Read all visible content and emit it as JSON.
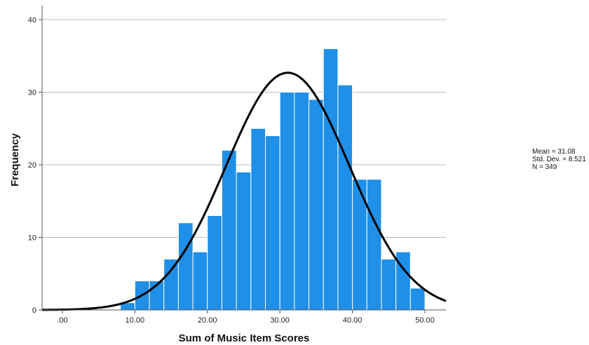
{
  "chart_data": {
    "type": "bar",
    "title": "",
    "xlabel": "Sum of Music Item Scores",
    "ylabel": "Frequency",
    "xlim": [
      -2.8,
      52.9
    ],
    "ylim": [
      0,
      40
    ],
    "x_ticks": [
      {
        "value": 0,
        "label": ".00"
      },
      {
        "value": 10,
        "label": "10.00"
      },
      {
        "value": 20,
        "label": "20.00"
      },
      {
        "value": 30,
        "label": "30.00"
      },
      {
        "value": 40,
        "label": "40.00"
      },
      {
        "value": 50,
        "label": "50.00"
      }
    ],
    "y_ticks": [
      {
        "value": 0,
        "label": "0"
      },
      {
        "value": 10,
        "label": "10"
      },
      {
        "value": 20,
        "label": "20"
      },
      {
        "value": 30,
        "label": "30"
      },
      {
        "value": 40,
        "label": "40"
      }
    ],
    "grid": "horizontal",
    "bar_color": "#1f8fe8",
    "bin_width": 2,
    "bins": [
      {
        "start": 8,
        "count": 1
      },
      {
        "start": 10,
        "count": 4
      },
      {
        "start": 12,
        "count": 4
      },
      {
        "start": 14,
        "count": 7
      },
      {
        "start": 16,
        "count": 12
      },
      {
        "start": 18,
        "count": 8
      },
      {
        "start": 20,
        "count": 13
      },
      {
        "start": 22,
        "count": 22
      },
      {
        "start": 24,
        "count": 19
      },
      {
        "start": 26,
        "count": 25
      },
      {
        "start": 28,
        "count": 24
      },
      {
        "start": 30,
        "count": 30
      },
      {
        "start": 32,
        "count": 30
      },
      {
        "start": 34,
        "count": 29
      },
      {
        "start": 36,
        "count": 36
      },
      {
        "start": 38,
        "count": 31
      },
      {
        "start": 40,
        "count": 18
      },
      {
        "start": 42,
        "count": 18
      },
      {
        "start": 44,
        "count": 7
      },
      {
        "start": 46,
        "count": 8
      },
      {
        "start": 48,
        "count": 3
      }
    ],
    "normal_curve": {
      "mean": 31.08,
      "std_dev": 8.521,
      "n": 349,
      "color": "#000000"
    },
    "stats_legend": {
      "position": "right",
      "lines": [
        "Mean = 31.08",
        "Std. Dev. = 8.521",
        "N = 349"
      ]
    }
  }
}
